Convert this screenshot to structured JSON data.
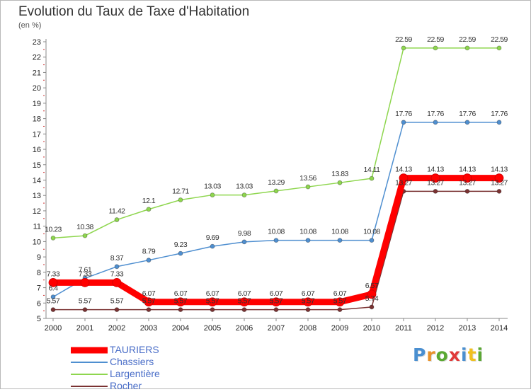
{
  "title": "Evolution du Taux de Taxe d'Habitation",
  "unit": "(en %)",
  "logo": {
    "text": "Proxiti",
    "letter_colors": [
      "#4a8fd0",
      "#e8922a",
      "#5aa832",
      "#e03a3a",
      "#4a8fd0",
      "#f0c020",
      "#5aa832"
    ]
  },
  "chart_data": {
    "type": "line",
    "x": [
      2000,
      2001,
      2002,
      2003,
      2004,
      2005,
      2006,
      2007,
      2008,
      2009,
      2010,
      2011,
      2012,
      2013,
      2014
    ],
    "yticks": [
      5,
      6,
      7,
      8,
      9,
      10,
      11,
      12,
      13,
      14,
      15,
      16,
      17,
      18,
      19,
      20,
      21,
      22,
      23
    ],
    "ylim": [
      5,
      23
    ],
    "grid": false,
    "legend_position": "bottom-left",
    "series": [
      {
        "name": "TAURIERS",
        "color": "#ff0000",
        "labels": [
          "7.33",
          "7.33",
          "7.33",
          "6.07",
          "6.07",
          "6.07",
          "6.07",
          "6.07",
          "6.07",
          "6.07",
          "6.57",
          "14.13",
          "14.13",
          "14.13",
          "14.13"
        ],
        "values": [
          7.33,
          7.33,
          7.33,
          6.07,
          6.07,
          6.07,
          6.07,
          6.07,
          6.07,
          6.07,
          6.57,
          14.13,
          14.13,
          14.13,
          14.13
        ]
      },
      {
        "name": "Chassiers",
        "color": "#4f8fd0",
        "labels": [
          "6.4",
          "7.61",
          "8.37",
          "8.79",
          "9.23",
          "9.69",
          "9.98",
          "10.08",
          "10.08",
          "10.08",
          "10.08",
          "17.76",
          "17.76",
          "17.76",
          "17.76"
        ],
        "values": [
          6.4,
          7.61,
          8.37,
          8.79,
          9.23,
          9.69,
          9.98,
          10.08,
          10.08,
          10.08,
          10.08,
          17.76,
          17.76,
          17.76,
          17.76
        ]
      },
      {
        "name": "Largentière",
        "color": "#8ed64e",
        "labels": [
          "10.23",
          "10.38",
          "11.42",
          "12.1",
          "12.71",
          "13.03",
          "13.03",
          "13.29",
          "13.56",
          "13.83",
          "14.11",
          "22.59",
          "22.59",
          "22.59",
          "22.59"
        ],
        "values": [
          10.23,
          10.38,
          11.42,
          12.1,
          12.71,
          13.03,
          13.03,
          13.29,
          13.56,
          13.83,
          14.11,
          22.59,
          22.59,
          22.59,
          22.59
        ]
      },
      {
        "name": "Rocher",
        "color": "#7a3232",
        "labels": [
          "5.57",
          "5.57",
          "5.57",
          "5.57",
          "5.57",
          "5.57",
          "5.57",
          "5.57",
          "5.57",
          "5.57",
          "5.74",
          "13.27",
          "13.27",
          "13.27",
          "13.27"
        ],
        "values": [
          5.57,
          5.57,
          5.57,
          5.57,
          5.57,
          5.57,
          5.57,
          5.57,
          5.57,
          5.57,
          5.74,
          13.27,
          13.27,
          13.27,
          13.27
        ]
      }
    ]
  }
}
